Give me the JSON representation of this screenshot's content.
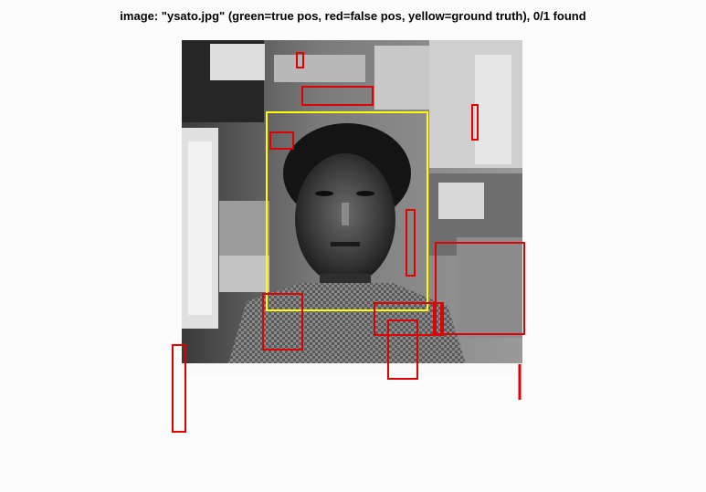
{
  "figure": {
    "title": "image: \"ysato.jpg\" (green=true pos, red=false pos, yellow=ground truth), 0/1 found"
  },
  "image": {
    "filename": "ysato.jpg",
    "content": "grayscale photo of a man in an office"
  },
  "detections": {
    "found": 0,
    "total": 1,
    "colors": {
      "true_positive": "#00c000",
      "false_positive": "#e00000",
      "ground_truth": "#ffff00"
    },
    "ground_truth_count": 1,
    "false_positive_count": 13,
    "true_positive_count": 0
  }
}
